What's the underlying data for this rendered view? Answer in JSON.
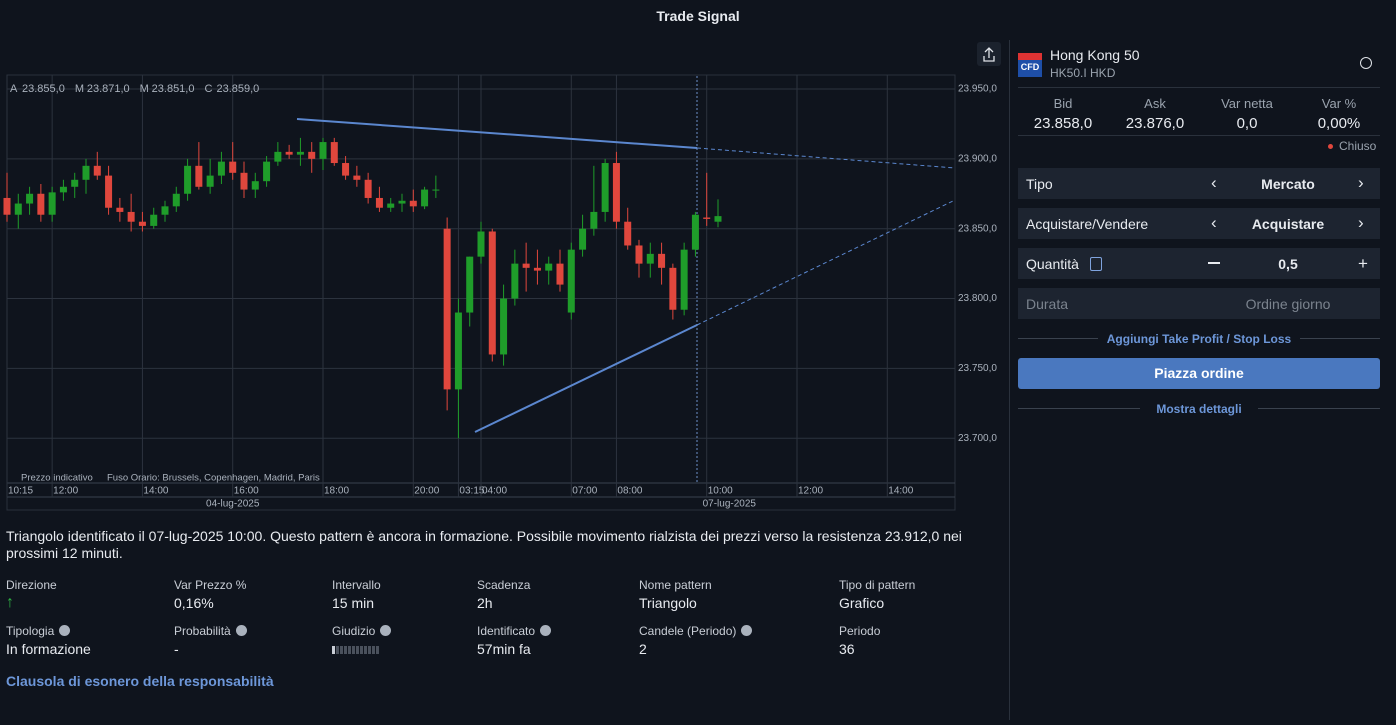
{
  "header": {
    "title": "Trade Signal"
  },
  "chart_data": {
    "type": "candlestick",
    "ohlc_legend": [
      {
        "label": "A",
        "value": "23.855,0"
      },
      {
        "label": "M",
        "value": "23.871,0"
      },
      {
        "label": "M",
        "value": "23.851,0"
      },
      {
        "label": "C",
        "value": "23.859,0"
      }
    ],
    "open": [
      23872,
      23860,
      23868,
      23875,
      23860,
      23876,
      23880,
      23885,
      23895,
      23888,
      23865,
      23862,
      23855,
      23852,
      23860,
      23866,
      23875,
      23895,
      23880,
      23888,
      23898,
      23890,
      23878,
      23884,
      23898,
      23905,
      23903,
      23905,
      23900,
      23912,
      23897,
      23888,
      23885,
      23872,
      23865,
      23868,
      23870,
      23866,
      23878,
      23850,
      23735,
      23790,
      23830,
      23848,
      23760,
      23800,
      23825,
      23822,
      23820,
      23825,
      23790,
      23835,
      23850,
      23862,
      23897,
      23855,
      23838,
      23825,
      23832,
      23822,
      23792,
      23835,
      23858,
      23855
    ],
    "high": [
      23890,
      23875,
      23880,
      23882,
      23880,
      23885,
      23890,
      23900,
      23905,
      23895,
      23872,
      23875,
      23862,
      23865,
      23870,
      23880,
      23900,
      23912,
      23900,
      23905,
      23912,
      23898,
      23890,
      23902,
      23912,
      23910,
      23915,
      23912,
      23915,
      23915,
      23902,
      23895,
      23890,
      23880,
      23872,
      23875,
      23878,
      23880,
      23888,
      23858,
      23800,
      23830,
      23855,
      23850,
      23810,
      23835,
      23840,
      23835,
      23830,
      23835,
      23840,
      23860,
      23895,
      23900,
      23905,
      23865,
      23842,
      23840,
      23840,
      23825,
      23840,
      23862,
      23890,
      23871
    ],
    "low": [
      23855,
      23850,
      23860,
      23855,
      23855,
      23870,
      23872,
      23875,
      23885,
      23860,
      23855,
      23848,
      23848,
      23850,
      23855,
      23862,
      23870,
      23878,
      23875,
      23882,
      23885,
      23872,
      23872,
      23880,
      23895,
      23900,
      23895,
      23890,
      23892,
      23895,
      23885,
      23880,
      23868,
      23862,
      23862,
      23862,
      23862,
      23864,
      23872,
      23720,
      23700,
      23780,
      23825,
      23755,
      23752,
      23795,
      23805,
      23810,
      23810,
      23805,
      23785,
      23830,
      23845,
      23855,
      23850,
      23835,
      23815,
      23815,
      23810,
      23785,
      23788,
      23830,
      23852,
      23851
    ],
    "close": [
      23860,
      23868,
      23875,
      23860,
      23876,
      23880,
      23885,
      23895,
      23888,
      23865,
      23862,
      23855,
      23852,
      23860,
      23866,
      23875,
      23895,
      23880,
      23888,
      23898,
      23890,
      23878,
      23884,
      23898,
      23905,
      23903,
      23905,
      23900,
      23912,
      23897,
      23888,
      23885,
      23872,
      23865,
      23868,
      23870,
      23866,
      23878,
      23878,
      23735,
      23790,
      23830,
      23848,
      23760,
      23800,
      23825,
      23822,
      23820,
      23825,
      23810,
      23835,
      23850,
      23862,
      23897,
      23855,
      23838,
      23825,
      23832,
      23822,
      23792,
      23835,
      23860,
      23857,
      23859
    ],
    "up_color": "#1f9d2a",
    "down_color": "#e0473d",
    "ylim": [
      23668,
      23960
    ],
    "yticks": [
      {
        "value": 23950,
        "label": "23.950,0"
      },
      {
        "value": 23900,
        "label": "23.900,0"
      },
      {
        "value": 23850,
        "label": "23.850,0"
      },
      {
        "value": 23800,
        "label": "23.800,0"
      },
      {
        "value": 23750,
        "label": "23.750,0"
      },
      {
        "value": 23700,
        "label": "23.700,0"
      }
    ],
    "xlim": [
      0,
      84
    ],
    "xticks": [
      {
        "value": 0,
        "label": "10:15"
      },
      {
        "value": 4,
        "label": "12:00"
      },
      {
        "value": 12,
        "label": "14:00"
      },
      {
        "value": 20,
        "label": "16:00"
      },
      {
        "value": 28,
        "label": "18:00"
      },
      {
        "value": 36,
        "label": "20:00"
      },
      {
        "value": 40,
        "label": "03:15"
      },
      {
        "value": 42,
        "label": "04:00"
      },
      {
        "value": 50,
        "label": "07:00"
      },
      {
        "value": 54,
        "label": "08:00"
      },
      {
        "value": 62,
        "label": "10:00"
      },
      {
        "value": 70,
        "label": "12:00"
      },
      {
        "value": 78,
        "label": "14:00"
      }
    ],
    "date_labels": [
      {
        "value": 20,
        "label": "04-lug-2025"
      },
      {
        "value": 64,
        "label": "07-lug-2025"
      }
    ],
    "footnote": [
      "Prezzo indicativo",
      "Fuso Orario: Brussels, Copenhagen, Madrid, Paris"
    ],
    "grid": true
  },
  "description": "Triangolo identificato il 07-lug-2025 10:00. Questo pattern è ancora in formazione. Possibile movimento rialzista dei prezzi verso la resistenza 23.912,0 nei prossimi 12 minuti.",
  "details": [
    [
      {
        "label": "Direzione"
      },
      {
        "label": "Var Prezzo %",
        "value": "0,16%"
      },
      {
        "label": "Intervallo",
        "value": "15 min"
      },
      {
        "label": "Scadenza",
        "value": "2h"
      },
      {
        "label": "Nome pattern",
        "value": "Triangolo"
      },
      {
        "label": "Tipo di pattern",
        "value": "Grafico"
      }
    ],
    [
      {
        "label": "Tipologia",
        "value": "In formazione",
        "help": true
      },
      {
        "label": "Probabilità",
        "value": "-",
        "help": true
      },
      {
        "label": "Giudizio",
        "help": true
      },
      {
        "label": "Identificato",
        "value": "57min fa",
        "help": true
      },
      {
        "label": "Candele (Periodo)",
        "value": "2",
        "help": true
      },
      {
        "label": "Periodo",
        "value": "36"
      }
    ]
  ],
  "disclaimer": "Clausola di esonero della responsabilità",
  "instrument": {
    "badge": "CFD",
    "name": "Hong Kong 50",
    "code": "HK50.I HKD"
  },
  "quote": [
    {
      "label": "Bid",
      "value": "23.858,0"
    },
    {
      "label": "Ask",
      "value": "23.876,0"
    },
    {
      "label": "Var netta",
      "value": "0,0"
    },
    {
      "label": "Var %",
      "value": "0,00%"
    }
  ],
  "status": "Chiuso",
  "form": [
    {
      "label": "Tipo",
      "value": "Mercato"
    },
    {
      "label": "Acquistare/Vendere",
      "value": "Acquistare"
    },
    {
      "label": "Quantità",
      "value": "0,5"
    },
    {
      "label": "Durata",
      "value": "Ordine giorno"
    }
  ],
  "tp_link": "Aggiungi Take Profit / Stop Loss",
  "button": "Piazza ordine",
  "details_link": "Mostra dettagli"
}
